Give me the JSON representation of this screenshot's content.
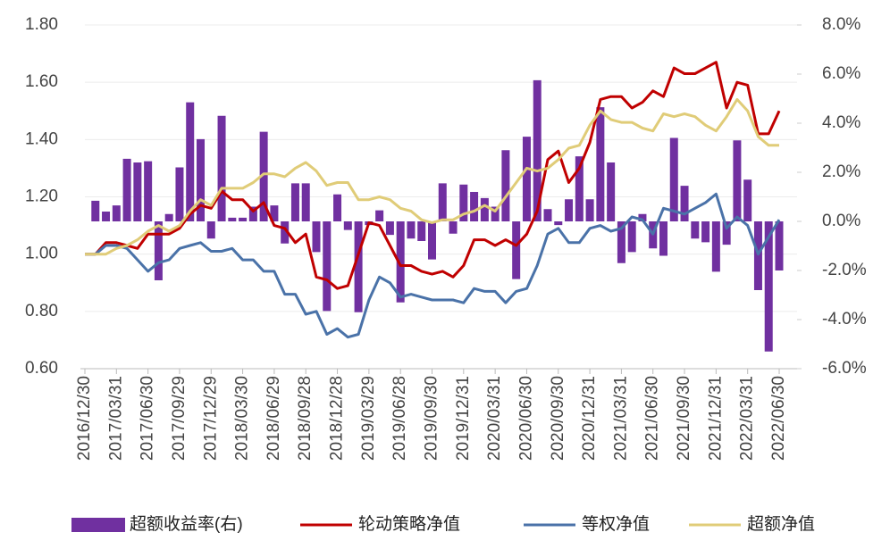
{
  "chart_data": {
    "type": "combo",
    "categories": [
      "2016/12/30",
      null,
      null,
      "2017/03/31",
      null,
      null,
      "2017/06/30",
      null,
      null,
      "2017/09/29",
      null,
      null,
      "2017/12/29",
      null,
      null,
      "2018/03/30",
      null,
      null,
      "2018/06/29",
      null,
      null,
      "2018/09/28",
      null,
      null,
      "2018/12/28",
      null,
      null,
      "2019/03/29",
      null,
      null,
      "2019/06/28",
      null,
      null,
      "2019/09/30",
      null,
      null,
      "2019/12/31",
      null,
      null,
      "2020/03/31",
      null,
      null,
      "2020/06/30",
      null,
      null,
      "2020/09/30",
      null,
      null,
      "2020/12/31",
      null,
      null,
      "2021/03/31",
      null,
      null,
      "2021/06/30",
      null,
      null,
      "2021/09/30",
      null,
      null,
      "2021/12/31",
      null,
      null,
      "2022/03/31",
      null,
      null,
      "2022/06/30"
    ],
    "series": [
      {
        "name": "超额收益率(右)",
        "type": "bar",
        "axis": "y2",
        "color": "#7030a0",
        "values": [
          null,
          0.84,
          0.4,
          0.65,
          2.55,
          2.4,
          2.45,
          -2.4,
          0.3,
          2.2,
          4.85,
          3.35,
          -0.7,
          4.3,
          0.15,
          0.15,
          0.6,
          3.65,
          0.65,
          -0.9,
          1.55,
          1.55,
          -1.25,
          -3.65,
          1.1,
          -0.35,
          -3.7,
          -0.15,
          0.45,
          -0.55,
          -3.3,
          -0.7,
          -0.8,
          -1.55,
          1.55,
          -0.5,
          1.5,
          1.2,
          0.95,
          0.6,
          2.9,
          -2.35,
          3.45,
          5.75,
          0.5,
          -0.15,
          0.9,
          2.65,
          0.9,
          4.65,
          2.4,
          -1.7,
          -1.25,
          0.3,
          -1.1,
          -1.4,
          3.4,
          1.45,
          -0.7,
          -0.85,
          -2.05,
          -0.95,
          3.3,
          1.7,
          -2.8,
          -5.3,
          -2.0
        ]
      },
      {
        "name": "轮动策略净值",
        "type": "line",
        "color": "#c00000",
        "values": [
          1.0,
          1.0,
          1.04,
          1.04,
          1.03,
          1.02,
          1.07,
          1.07,
          1.07,
          1.09,
          1.14,
          1.17,
          1.16,
          1.22,
          1.19,
          1.19,
          1.15,
          1.18,
          1.1,
          1.09,
          1.04,
          1.07,
          0.92,
          0.91,
          0.88,
          0.89,
          1.0,
          1.11,
          1.1,
          1.03,
          0.96,
          0.96,
          0.94,
          0.93,
          0.94,
          0.92,
          0.96,
          1.05,
          1.05,
          1.03,
          1.05,
          1.03,
          1.07,
          1.15,
          1.33,
          1.36,
          1.25,
          1.3,
          1.39,
          1.54,
          1.55,
          1.55,
          1.51,
          1.53,
          1.57,
          1.55,
          1.65,
          1.63,
          1.63,
          1.65,
          1.67,
          1.51,
          1.6,
          1.59,
          1.42,
          1.42,
          1.5
        ]
      },
      {
        "name": "等权净值",
        "type": "line",
        "color": "#4a72a8",
        "values": [
          1.0,
          1.0,
          1.03,
          1.03,
          1.02,
          0.98,
          0.94,
          0.97,
          0.98,
          1.02,
          1.03,
          1.04,
          1.01,
          1.01,
          1.02,
          0.98,
          0.98,
          0.94,
          0.94,
          0.86,
          0.86,
          0.79,
          0.8,
          0.72,
          0.74,
          0.71,
          0.72,
          0.84,
          0.92,
          0.9,
          0.85,
          0.86,
          0.85,
          0.84,
          0.84,
          0.84,
          0.83,
          0.88,
          0.87,
          0.87,
          0.83,
          0.87,
          0.88,
          0.96,
          1.07,
          1.09,
          1.04,
          1.04,
          1.09,
          1.1,
          1.08,
          1.09,
          1.13,
          1.12,
          1.07,
          1.16,
          1.15,
          1.14,
          1.16,
          1.18,
          1.21,
          1.09,
          1.13,
          1.1,
          1.0,
          1.06,
          1.12
        ]
      },
      {
        "name": "超额净值",
        "type": "line",
        "color": "#e0cc78",
        "values": [
          1.0,
          1.0,
          1.0,
          1.02,
          1.03,
          1.05,
          1.08,
          1.1,
          1.08,
          1.1,
          1.15,
          1.19,
          1.17,
          1.23,
          1.23,
          1.23,
          1.25,
          1.28,
          1.28,
          1.27,
          1.3,
          1.32,
          1.29,
          1.24,
          1.25,
          1.25,
          1.19,
          1.19,
          1.2,
          1.19,
          1.16,
          1.15,
          1.12,
          1.11,
          1.12,
          1.12,
          1.14,
          1.15,
          1.17,
          1.15,
          1.2,
          1.25,
          1.3,
          1.29,
          1.3,
          1.33,
          1.37,
          1.38,
          1.45,
          1.5,
          1.47,
          1.46,
          1.46,
          1.44,
          1.43,
          1.49,
          1.48,
          1.49,
          1.48,
          1.45,
          1.43,
          1.48,
          1.54,
          1.5,
          1.41,
          1.38,
          1.38
        ]
      }
    ],
    "ylim": [
      0.6,
      1.8
    ],
    "yticks": [
      {
        "value": 0.6,
        "label": "0.60"
      },
      {
        "value": 0.8,
        "label": "0.80"
      },
      {
        "value": 1.0,
        "label": "1.00"
      },
      {
        "value": 1.2,
        "label": "1.20"
      },
      {
        "value": 1.4,
        "label": "1.40"
      },
      {
        "value": 1.6,
        "label": "1.60"
      },
      {
        "value": 1.8,
        "label": "1.80"
      }
    ],
    "y2lim": [
      -6,
      8
    ],
    "y2ticks": [
      {
        "value": -6,
        "label": "-6.0%"
      },
      {
        "value": -4,
        "label": "-4.0%"
      },
      {
        "value": -2,
        "label": "-2.0%"
      },
      {
        "value": 0,
        "label": "0.0%"
      },
      {
        "value": 2,
        "label": "2.0%"
      },
      {
        "value": 4,
        "label": "4.0%"
      },
      {
        "value": 6,
        "label": "6.0%"
      },
      {
        "value": 8,
        "label": "8.0%"
      }
    ],
    "grid": true,
    "legend": "bottom"
  }
}
